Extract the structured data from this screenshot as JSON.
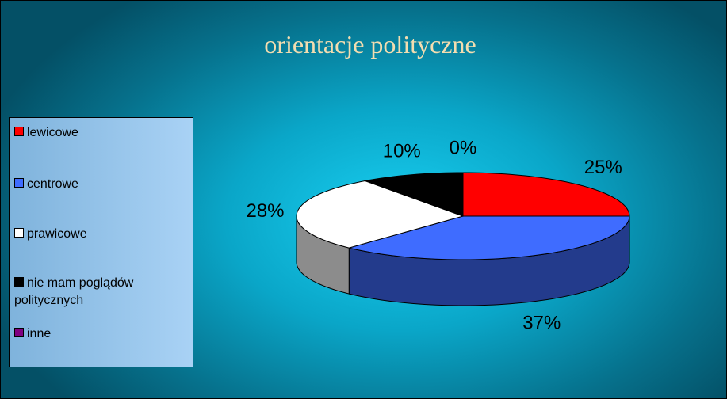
{
  "chart_data": {
    "type": "pie",
    "title": "orientacje polityczne",
    "categories": [
      "lewicowe",
      "centrowe",
      "prawicowe",
      "nie mam poglądów politycznych",
      "inne"
    ],
    "values": [
      25,
      37,
      28,
      10,
      0
    ],
    "value_labels": [
      "25%",
      "37%",
      "28%",
      "10%",
      "0%"
    ],
    "colors": [
      "#ff0000",
      "#3f6cff",
      "#ffffff",
      "#000000",
      "#800080"
    ],
    "legend": "left"
  }
}
